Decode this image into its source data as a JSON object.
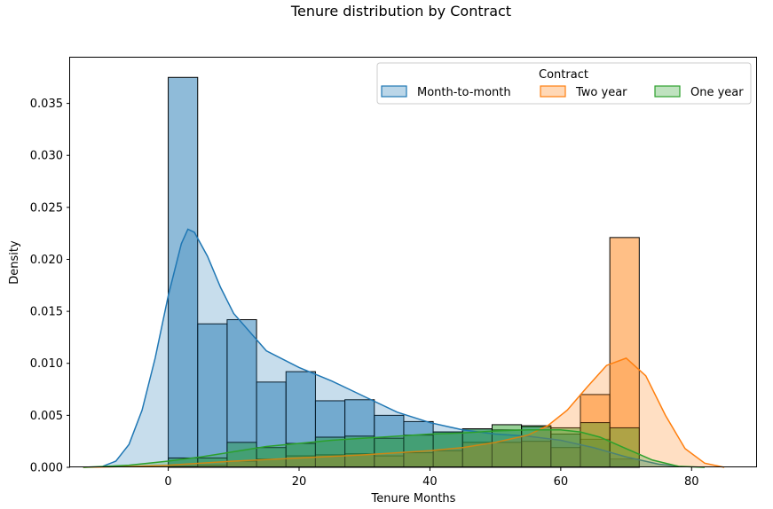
{
  "chart_data": {
    "type": "histogram",
    "title": "Tenure distribution by Contract",
    "xlabel": "Tenure Months",
    "ylabel": "Density",
    "xlim": [
      -15,
      90
    ],
    "ylim": [
      0,
      0.0394
    ],
    "x_ticks": [
      0,
      20,
      40,
      60,
      80
    ],
    "y_ticks": [
      0.0,
      0.005,
      0.01,
      0.015,
      0.02,
      0.025,
      0.03,
      0.035
    ],
    "y_tick_labels": [
      "0.000",
      "0.005",
      "0.010",
      "0.015",
      "0.020",
      "0.025",
      "0.030",
      "0.035"
    ],
    "grid": false,
    "legend": {
      "title": "Contract",
      "placement": "top-right",
      "ncol": 3
    },
    "bin_edges": [
      0,
      4.5,
      9,
      13.5,
      18,
      22.5,
      27,
      31.5,
      36,
      40.5,
      45,
      49.5,
      54,
      58.5,
      63,
      67.5,
      72
    ],
    "series": [
      {
        "name": "Month-to-month",
        "color": "#1f77b4",
        "hist_values": [
          0.0375,
          0.0138,
          0.0142,
          0.0082,
          0.0092,
          0.0064,
          0.0065,
          0.005,
          0.0044,
          0.0034,
          0.0037,
          0.0036,
          0.0039,
          0.0032,
          0.0027,
          0.0008
        ],
        "kde_x": [
          -10,
          -8,
          -6,
          -4,
          -2,
          0,
          2,
          3,
          4,
          6,
          8,
          10,
          15,
          20,
          25,
          30,
          35,
          40,
          45,
          50,
          55,
          60,
          65,
          70,
          75,
          78
        ],
        "kde_y": [
          0.0001,
          0.0006,
          0.0022,
          0.0055,
          0.0105,
          0.0165,
          0.0215,
          0.0229,
          0.0226,
          0.0203,
          0.0173,
          0.0148,
          0.0112,
          0.0096,
          0.0083,
          0.0068,
          0.0053,
          0.0043,
          0.0036,
          0.0032,
          0.003,
          0.0026,
          0.0019,
          0.001,
          0.0003,
          0.0001
        ]
      },
      {
        "name": "Two year",
        "color": "#ff7f0e",
        "hist_values": [
          0.0001,
          0.0002,
          0.0006,
          0.0008,
          0.0011,
          0.0012,
          0.0013,
          0.0011,
          0.0014,
          0.0016,
          0.0024,
          0.0024,
          0.0025,
          0.0019,
          0.007,
          0.0221
        ],
        "kde_x": [
          -13,
          -5,
          0,
          10,
          20,
          30,
          40,
          45,
          50,
          55,
          58,
          61,
          64,
          67,
          70,
          73,
          76,
          79,
          82,
          85
        ],
        "kde_y": [
          0.0,
          0.0001,
          0.0002,
          0.0006,
          0.0009,
          0.0012,
          0.0016,
          0.0019,
          0.0024,
          0.0031,
          0.004,
          0.0055,
          0.0077,
          0.0098,
          0.0105,
          0.0088,
          0.005,
          0.0018,
          0.0004,
          0.0
        ]
      },
      {
        "name": "One year",
        "color": "#2ca02c",
        "hist_values": [
          0.0009,
          0.0009,
          0.0024,
          0.0019,
          0.0023,
          0.0029,
          0.003,
          0.0028,
          0.0031,
          0.0034,
          0.0037,
          0.0041,
          0.004,
          0.0038,
          0.0043,
          0.0038
        ],
        "kde_x": [
          -13,
          -6,
          0,
          5,
          10,
          15,
          20,
          25,
          30,
          35,
          40,
          45,
          50,
          55,
          60,
          63,
          66,
          70,
          74,
          78,
          82
        ],
        "kde_y": [
          0.0,
          0.0002,
          0.0006,
          0.001,
          0.0015,
          0.002,
          0.0023,
          0.0026,
          0.0028,
          0.003,
          0.0032,
          0.0033,
          0.0035,
          0.0036,
          0.0036,
          0.0034,
          0.0029,
          0.0018,
          0.0007,
          0.0001,
          0.0
        ]
      }
    ]
  }
}
